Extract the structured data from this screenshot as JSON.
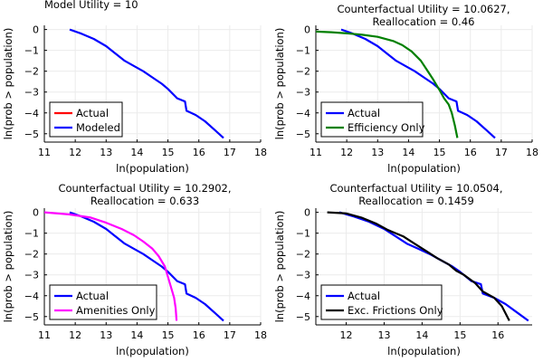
{
  "colors": {
    "blue": "#0000ff",
    "red": "#ff0000",
    "green": "#008000",
    "magenta": "#ff00ff",
    "black": "#000000",
    "grid": "#ebebeb"
  },
  "chart_data": [
    {
      "type": "line",
      "title": "Model Utility = 10",
      "xlabel": "ln(population)",
      "ylabel": "ln(prob > population)",
      "xlim": [
        11,
        18
      ],
      "ylim": [
        -5.4,
        0.2
      ],
      "xticks": [
        11,
        12,
        13,
        14,
        15,
        16,
        17,
        18
      ],
      "yticks": [
        0,
        -1,
        -2,
        -3,
        -4,
        -5
      ],
      "grid": true,
      "legend_position": "bottom-left",
      "series": [
        {
          "name": "Actual",
          "color": "red",
          "x": [],
          "y": []
        },
        {
          "name": "Modeled",
          "color": "blue",
          "x": [
            11.82,
            12.2,
            12.6,
            13.0,
            13.3,
            13.6,
            13.9,
            14.2,
            14.5,
            14.8,
            15.0,
            15.3,
            15.55,
            15.6,
            15.9,
            16.2,
            16.5,
            16.8
          ],
          "y": [
            0.0,
            -0.2,
            -0.45,
            -0.8,
            -1.15,
            -1.5,
            -1.75,
            -2.0,
            -2.3,
            -2.6,
            -2.85,
            -3.3,
            -3.45,
            -3.9,
            -4.1,
            -4.4,
            -4.8,
            -5.2
          ]
        }
      ]
    },
    {
      "type": "line",
      "title": "Counterfactual Utility = 10.0627,",
      "subtitle": "Reallocation = 0.46",
      "xlabel": "ln(population)",
      "ylabel": "ln(prob > population)",
      "xlim": [
        11,
        18
      ],
      "ylim": [
        -5.4,
        0.2
      ],
      "xticks": [
        11,
        12,
        13,
        14,
        15,
        16,
        17,
        18
      ],
      "yticks": [
        0,
        -1,
        -2,
        -3,
        -4,
        -5
      ],
      "grid": true,
      "legend_position": "bottom-left",
      "series": [
        {
          "name": "Actual",
          "color": "blue",
          "x": [
            11.82,
            12.2,
            12.6,
            13.0,
            13.3,
            13.6,
            13.9,
            14.2,
            14.5,
            14.8,
            15.0,
            15.3,
            15.55,
            15.6,
            15.9,
            16.2,
            16.5,
            16.8
          ],
          "y": [
            0.0,
            -0.2,
            -0.45,
            -0.8,
            -1.15,
            -1.5,
            -1.75,
            -2.0,
            -2.3,
            -2.6,
            -2.85,
            -3.3,
            -3.45,
            -3.9,
            -4.1,
            -4.4,
            -4.8,
            -5.2
          ]
        },
        {
          "name": "Efficiency Only",
          "color": "green",
          "x": [
            11.0,
            11.5,
            12.0,
            12.5,
            13.0,
            13.5,
            13.8,
            14.1,
            14.4,
            14.6,
            14.8,
            15.0,
            15.15,
            15.3,
            15.4,
            15.5,
            15.58
          ],
          "y": [
            -0.1,
            -0.13,
            -0.18,
            -0.25,
            -0.35,
            -0.55,
            -0.75,
            -1.05,
            -1.5,
            -1.95,
            -2.4,
            -2.9,
            -3.3,
            -3.6,
            -4.0,
            -4.6,
            -5.2
          ]
        }
      ]
    },
    {
      "type": "line",
      "title": "Counterfactual Utility = 10.2902,",
      "subtitle": "Reallocation = 0.633",
      "xlabel": "ln(population)",
      "ylabel": "ln(prob > population)",
      "xlim": [
        11,
        18
      ],
      "ylim": [
        -5.4,
        0.2
      ],
      "xticks": [
        11,
        12,
        13,
        14,
        15,
        16,
        17,
        18
      ],
      "yticks": [
        0,
        -1,
        -2,
        -3,
        -4,
        -5
      ],
      "grid": true,
      "legend_position": "bottom-left",
      "series": [
        {
          "name": "Actual",
          "color": "blue",
          "x": [
            11.82,
            12.2,
            12.6,
            13.0,
            13.3,
            13.6,
            13.9,
            14.2,
            14.5,
            14.8,
            15.0,
            15.3,
            15.55,
            15.6,
            15.9,
            16.2,
            16.5,
            16.8
          ],
          "y": [
            0.0,
            -0.2,
            -0.45,
            -0.8,
            -1.15,
            -1.5,
            -1.75,
            -2.0,
            -2.3,
            -2.6,
            -2.85,
            -3.3,
            -3.45,
            -3.9,
            -4.1,
            -4.4,
            -4.8,
            -5.2
          ]
        },
        {
          "name": "Amenities Only",
          "color": "magenta",
          "x": [
            11.0,
            11.8,
            12.5,
            13.0,
            13.5,
            13.9,
            14.2,
            14.5,
            14.7,
            14.9,
            15.0,
            15.1,
            15.2,
            15.25,
            15.28
          ],
          "y": [
            0.0,
            -0.1,
            -0.25,
            -0.5,
            -0.8,
            -1.1,
            -1.4,
            -1.75,
            -2.1,
            -2.6,
            -3.1,
            -3.6,
            -4.1,
            -4.6,
            -5.2
          ]
        }
      ]
    },
    {
      "type": "line",
      "title": "Counterfactual Utility = 10.0504,",
      "subtitle": "Reallocation = 0.1459",
      "xlabel": "ln(population)",
      "ylabel": "ln(prob > population)",
      "xlim": [
        11.2,
        16.9
      ],
      "ylim": [
        -5.4,
        0.2
      ],
      "xticks": [
        12,
        13,
        14,
        15,
        16
      ],
      "yticks": [
        0,
        -1,
        -2,
        -3,
        -4,
        -5
      ],
      "grid": true,
      "legend_position": "bottom-left",
      "series": [
        {
          "name": "Actual",
          "color": "blue",
          "x": [
            11.82,
            12.2,
            12.6,
            13.0,
            13.3,
            13.6,
            13.9,
            14.2,
            14.5,
            14.8,
            15.0,
            15.3,
            15.55,
            15.6,
            15.9,
            16.2,
            16.5,
            16.8
          ],
          "y": [
            0.0,
            -0.2,
            -0.45,
            -0.8,
            -1.15,
            -1.5,
            -1.75,
            -2.0,
            -2.3,
            -2.6,
            -2.85,
            -3.3,
            -3.45,
            -3.9,
            -4.1,
            -4.4,
            -4.8,
            -5.2
          ]
        },
        {
          "name": "Exc. Frictions Only",
          "color": "black",
          "x": [
            11.5,
            12.0,
            12.4,
            12.8,
            13.1,
            13.5,
            13.8,
            14.1,
            14.4,
            14.7,
            14.9,
            15.1,
            15.4,
            15.6,
            15.9,
            16.1,
            16.3
          ],
          "y": [
            0.0,
            -0.05,
            -0.25,
            -0.55,
            -0.85,
            -1.15,
            -1.5,
            -1.85,
            -2.2,
            -2.5,
            -2.8,
            -3.0,
            -3.4,
            -3.8,
            -4.1,
            -4.5,
            -5.2
          ]
        }
      ]
    }
  ]
}
